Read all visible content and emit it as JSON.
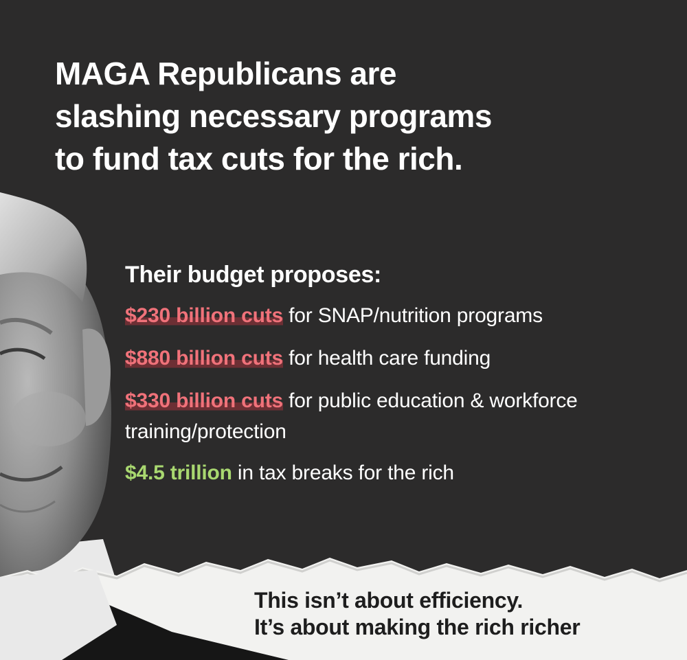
{
  "headline": {
    "lines": [
      "MAGA Republicans are",
      "slashing necessary programs",
      "to fund tax cuts for the rich."
    ]
  },
  "budget": {
    "title": "Their budget proposes:",
    "items": [
      {
        "amount": "$230 billion cuts",
        "text": " for SNAP/nutrition programs",
        "kind": "cut"
      },
      {
        "amount": "$880 billion cuts",
        "text": " for health care funding",
        "kind": "cut"
      },
      {
        "amount": "$330 billion cuts",
        "text": " for public education & workforce training/protection",
        "kind": "cut"
      },
      {
        "amount": "$4.5 trillion",
        "text": " in tax breaks for the rich",
        "kind": "gain"
      }
    ]
  },
  "tagline": {
    "lines": [
      "This isn’t about efficiency.",
      "It’s about making the rich richer"
    ]
  },
  "colors": {
    "background": "#2c2b2b",
    "cut_accent": "#f0727a",
    "gain_accent": "#a9d870",
    "paper": "#f2f2f0"
  }
}
